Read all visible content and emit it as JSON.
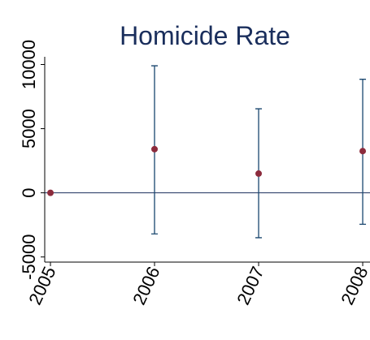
{
  "chart_data": {
    "type": "errorbar",
    "title": "Homicide Rate",
    "x": [
      2005,
      2006,
      2007,
      2008
    ],
    "values": [
      0,
      3400,
      1500,
      3250
    ],
    "lower": [
      null,
      -3200,
      -3500,
      -2450
    ],
    "upper": [
      null,
      9900,
      6550,
      8850
    ],
    "point_color": "#8c2b3c",
    "bar_color": "#1a476f",
    "xlim": [
      2004.945,
      2008.07
    ],
    "xticks": [
      2005,
      2006,
      2007,
      2008
    ],
    "ylim": [
      -5400,
      10600
    ],
    "yticks": [
      -5000,
      0,
      5000,
      10000
    ],
    "yline": 0
  }
}
